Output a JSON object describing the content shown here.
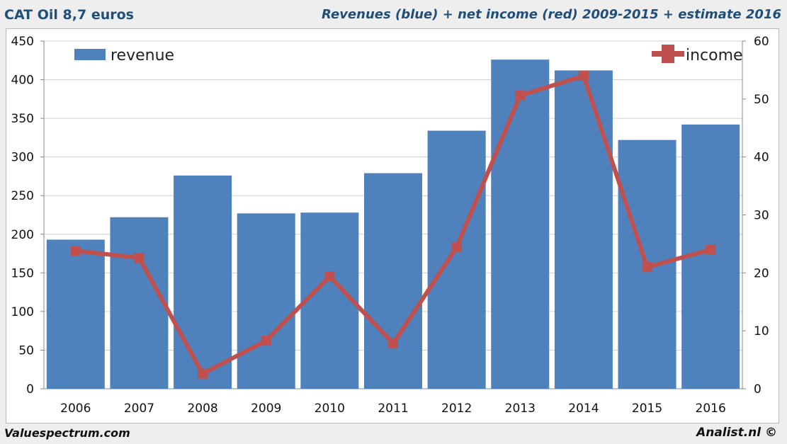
{
  "title": "CAT Oil 8,7 euros",
  "subtitle": "Revenues (blue) + net income (red) 2009-2015 + estimate 2016",
  "footer_left": "Valuespectrum.com",
  "footer_right": "Analist.nl ©",
  "chart_data": {
    "type": "bar+line",
    "categories": [
      "2006",
      "2007",
      "2008",
      "2009",
      "2010",
      "2011",
      "2012",
      "2013",
      "2014",
      "2015",
      "2016"
    ],
    "series": [
      {
        "name": "revenue",
        "type": "bar",
        "axis": "left",
        "color": "#4f81bd",
        "values": [
          193,
          222,
          276,
          227,
          228,
          279,
          334,
          426,
          412,
          322,
          342
        ]
      },
      {
        "name": "income",
        "type": "line",
        "axis": "right",
        "color": "#c0504d",
        "values": [
          23.8,
          22.6,
          2.6,
          8.3,
          19.4,
          7.8,
          24.4,
          50.6,
          54,
          21,
          24
        ]
      }
    ],
    "ylim_left": [
      0,
      450
    ],
    "yticks_left": [
      0,
      50,
      100,
      150,
      200,
      250,
      300,
      350,
      400,
      450
    ],
    "ylim_right": [
      0,
      60
    ],
    "yticks_right": [
      0,
      10,
      20,
      30,
      40,
      50,
      60
    ],
    "grid": true,
    "legend": "top (revenue left, income right)"
  }
}
